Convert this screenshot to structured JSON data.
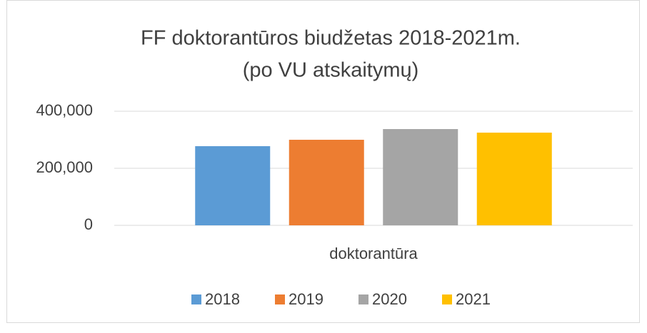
{
  "chart_data": {
    "type": "bar",
    "title": [
      "FF doktorantūros biudžetas 2018-2021m.",
      "(po VU atskaitymų)"
    ],
    "categories": [
      "doktorantūra"
    ],
    "series": [
      {
        "name": "2018",
        "color": "#5b9bd5",
        "values": [
          277500
        ]
      },
      {
        "name": "2019",
        "color": "#ed7d31",
        "values": [
          300000
        ]
      },
      {
        "name": "2020",
        "color": "#a5a5a5",
        "values": [
          337500
        ]
      },
      {
        "name": "2021",
        "color": "#ffc000",
        "values": [
          325000
        ]
      }
    ],
    "ylim": [
      0,
      400000
    ],
    "yticks": [
      0,
      {
        "value": 200000,
        "label": "200,000"
      },
      {
        "value": 400000,
        "label": "400,000"
      }
    ],
    "grid": true,
    "legend": "bottom"
  }
}
